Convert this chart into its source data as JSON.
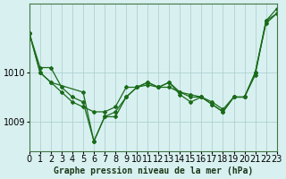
{
  "background_color": "#d8f0f0",
  "grid_color": "#aacccc",
  "line_color": "#1a6b1a",
  "marker_color": "#1a6b1a",
  "xlabel": "Graphe pression niveau de la mer (hPa)",
  "xlim": [
    0,
    23
  ],
  "ylim": [
    1008.4,
    1011.4
  ],
  "yticks": [
    1009,
    1010
  ],
  "xticks": [
    0,
    1,
    2,
    3,
    4,
    5,
    6,
    7,
    8,
    9,
    10,
    11,
    12,
    13,
    14,
    15,
    16,
    17,
    18,
    19,
    20,
    21,
    22,
    23
  ],
  "series1_x": [
    0,
    1,
    2,
    3,
    4,
    5,
    6,
    7,
    8,
    9,
    10,
    11,
    12,
    13,
    14,
    15,
    16,
    17,
    18,
    19,
    20,
    21,
    22,
    23
  ],
  "series1_y": [
    1010.8,
    1010.1,
    1010.1,
    1009.7,
    1009.5,
    1009.4,
    1008.6,
    1009.1,
    1009.1,
    1009.5,
    1009.7,
    1009.8,
    1009.7,
    1009.8,
    1009.6,
    1009.5,
    1009.5,
    1009.35,
    1009.2,
    1009.5,
    1009.5,
    1010.0,
    1011.0,
    1011.2
  ],
  "series2_x": [
    0,
    1,
    2,
    3,
    4,
    5,
    6,
    7,
    8,
    9,
    10,
    11,
    12,
    13,
    14,
    15,
    16,
    17,
    18,
    19,
    20,
    21,
    22,
    23
  ],
  "series2_y": [
    1010.8,
    1010.0,
    1009.8,
    1009.6,
    1009.4,
    1009.3,
    1009.2,
    1009.2,
    1009.3,
    1009.7,
    1009.7,
    1009.8,
    1009.7,
    1009.7,
    1009.6,
    1009.55,
    1009.5,
    1009.4,
    1009.25,
    1009.5,
    1009.5,
    1009.95,
    1011.05,
    1011.2
  ],
  "series3_x": [
    0,
    1,
    2,
    5,
    6,
    7,
    8,
    9,
    10,
    11,
    12,
    13,
    14,
    15,
    16,
    17,
    18,
    19,
    20,
    21,
    22,
    23
  ],
  "series3_y": [
    1010.8,
    1010.0,
    1009.8,
    1009.6,
    1008.6,
    1009.1,
    1009.2,
    1009.5,
    1009.7,
    1009.75,
    1009.7,
    1009.8,
    1009.55,
    1009.4,
    1009.5,
    1009.35,
    1009.2,
    1009.5,
    1009.5,
    1010.0,
    1011.05,
    1011.3
  ],
  "tick_fontsize": 7,
  "label_fontsize": 7
}
